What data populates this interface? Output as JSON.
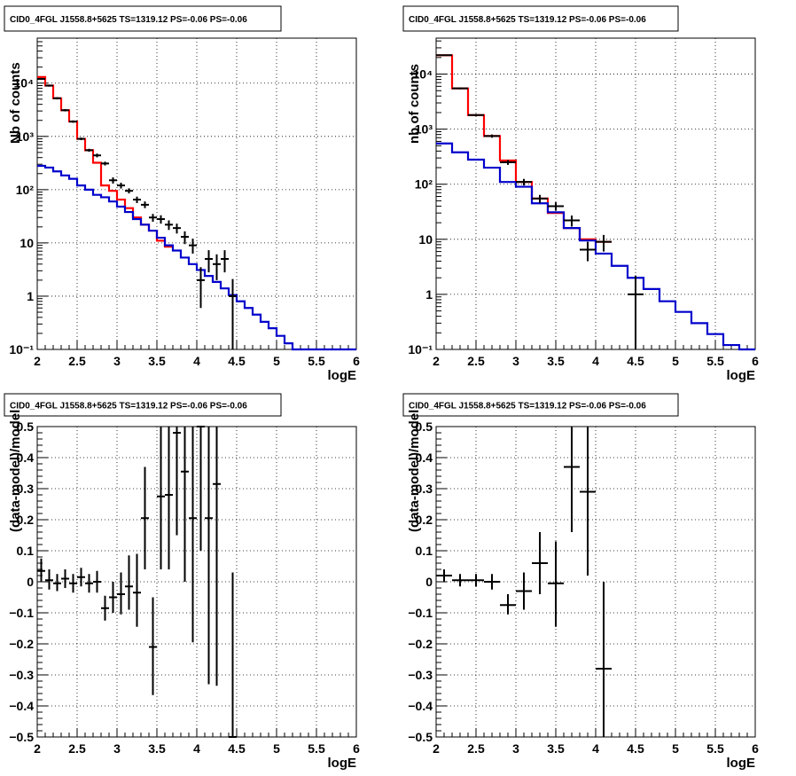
{
  "chart_data": [
    {
      "id": "tl",
      "type": "histogram-log",
      "title": "CID0_4FGL J1558.8+5625 TS=1319.12 PS=-0.06 PS=-0.06",
      "xlabel": "logE",
      "ylabel": "Nb of counts",
      "xlim": [
        2,
        6
      ],
      "ylim": [
        0.1,
        70000
      ],
      "log_y": true,
      "grid": true,
      "xticks": [
        {
          "v": 2,
          "t": "2"
        },
        {
          "v": 2.5,
          "t": "2.5"
        },
        {
          "v": 3,
          "t": "3"
        },
        {
          "v": 3.5,
          "t": "3.5"
        },
        {
          "v": 4,
          "t": "4"
        },
        {
          "v": 4.5,
          "t": "4.5"
        },
        {
          "v": 5,
          "t": "5"
        },
        {
          "v": 5.5,
          "t": "5.5"
        },
        {
          "v": 6,
          "t": "6"
        }
      ],
      "yticks": [
        {
          "v": 0.1,
          "t": "10⁻¹"
        },
        {
          "v": 1,
          "t": "1"
        },
        {
          "v": 10,
          "t": "10"
        },
        {
          "v": 100,
          "t": "10²"
        },
        {
          "v": 1000,
          "t": "10³"
        },
        {
          "v": 10000,
          "t": "10⁴"
        }
      ],
      "bin_width": 0.1,
      "series": [
        {
          "color": "#ff0000",
          "edges_start": 2.0,
          "values": [
            13000,
            9000,
            5200,
            3100,
            1900,
            900,
            550,
            320,
            120,
            95,
            65,
            45,
            30,
            22,
            17,
            11,
            8.5
          ]
        },
        {
          "color": "#0000cc",
          "edges_start": 2.0,
          "values": [
            280,
            260,
            220,
            185,
            160,
            120,
            100,
            80,
            72,
            60,
            48,
            38,
            28,
            22,
            17,
            12.5,
            9,
            7.2,
            5.3,
            4.0,
            3.1,
            2.4,
            1.85,
            1.4,
            1.05,
            0.8,
            0.6,
            0.45,
            0.33,
            0.25,
            0.18,
            0.13,
            0.1,
            0.1,
            0.1,
            0.1,
            0.1,
            0.1,
            0.1,
            0.1
          ]
        }
      ],
      "points": [
        {
          "x": 2.05,
          "y": 12000,
          "lo": 11500,
          "hi": 12500
        },
        {
          "x": 2.15,
          "y": 9000,
          "lo": 8600,
          "hi": 9400
        },
        {
          "x": 2.25,
          "y": 5200,
          "lo": 4950,
          "hi": 5450
        },
        {
          "x": 2.35,
          "y": 3100,
          "lo": 2950,
          "hi": 3250
        },
        {
          "x": 2.45,
          "y": 1900,
          "lo": 1800,
          "hi": 2000
        },
        {
          "x": 2.55,
          "y": 900,
          "lo": 850,
          "hi": 950
        },
        {
          "x": 2.65,
          "y": 550,
          "lo": 515,
          "hi": 585
        },
        {
          "x": 2.75,
          "y": 440,
          "lo": 405,
          "hi": 475
        },
        {
          "x": 2.85,
          "y": 310,
          "lo": 285,
          "hi": 335
        },
        {
          "x": 2.95,
          "y": 150,
          "lo": 130,
          "hi": 170
        },
        {
          "x": 3.05,
          "y": 120,
          "lo": 105,
          "hi": 135
        },
        {
          "x": 3.15,
          "y": 95,
          "lo": 85,
          "hi": 106
        },
        {
          "x": 3.25,
          "y": 65,
          "lo": 56,
          "hi": 74
        },
        {
          "x": 3.35,
          "y": 52,
          "lo": 45,
          "hi": 60
        },
        {
          "x": 3.45,
          "y": 30,
          "lo": 25,
          "hi": 35
        },
        {
          "x": 3.55,
          "y": 28,
          "lo": 23,
          "hi": 33
        },
        {
          "x": 3.65,
          "y": 22,
          "lo": 17.5,
          "hi": 26.5
        },
        {
          "x": 3.75,
          "y": 19,
          "lo": 15,
          "hi": 23
        },
        {
          "x": 3.85,
          "y": 13,
          "lo": 9.5,
          "hi": 16.5
        },
        {
          "x": 3.95,
          "y": 9,
          "lo": 6.3,
          "hi": 12
        },
        {
          "x": 4.05,
          "y": 2,
          "lo": 0.6,
          "hi": 3.5
        },
        {
          "x": 4.15,
          "y": 5,
          "lo": 2.8,
          "hi": 7.3
        },
        {
          "x": 4.25,
          "y": 4,
          "lo": 2.0,
          "hi": 6.1
        },
        {
          "x": 4.35,
          "y": 5,
          "lo": 2.8,
          "hi": 7.3
        },
        {
          "x": 4.45,
          "y": 1,
          "lo": 0.1,
          "hi": 2.1
        }
      ]
    },
    {
      "id": "tr",
      "type": "histogram-log",
      "title": "CID0_4FGL J1558.8+5625 TS=1319.12 PS=-0.06 PS=-0.06",
      "xlabel": "logE",
      "ylabel": "nb of counts",
      "xlim": [
        2,
        6
      ],
      "ylim": [
        0.1,
        45000
      ],
      "log_y": true,
      "grid": true,
      "xticks": [
        {
          "v": 2,
          "t": "2"
        },
        {
          "v": 2.5,
          "t": "2.5"
        },
        {
          "v": 3,
          "t": "3"
        },
        {
          "v": 3.5,
          "t": "3.5"
        },
        {
          "v": 4,
          "t": "4"
        },
        {
          "v": 4.5,
          "t": "4.5"
        },
        {
          "v": 5,
          "t": "5"
        },
        {
          "v": 5.5,
          "t": "5.5"
        },
        {
          "v": 6,
          "t": "6"
        }
      ],
      "yticks": [
        {
          "v": 0.1,
          "t": "10⁻¹"
        },
        {
          "v": 1,
          "t": "1"
        },
        {
          "v": 10,
          "t": "10"
        },
        {
          "v": 100,
          "t": "10²"
        },
        {
          "v": 1000,
          "t": "10³"
        },
        {
          "v": 10000,
          "t": "10⁴"
        }
      ],
      "bin_width": 0.2,
      "series": [
        {
          "color": "#ff0000",
          "edges_start": 2.0,
          "values": [
            22000,
            5500,
            1800,
            750,
            270,
            110,
            55,
            30,
            16,
            10,
            9
          ]
        },
        {
          "color": "#0000cc",
          "edges_start": 2.0,
          "values": [
            550,
            380,
            280,
            200,
            110,
            90,
            45,
            31,
            16,
            9.5,
            5.5,
            3.3,
            2.0,
            1.25,
            0.75,
            0.48,
            0.3,
            0.19,
            0.12,
            0.1
          ]
        }
      ],
      "points": [
        {
          "x": 2.1,
          "y": 22000,
          "lo": 21400,
          "hi": 22600
        },
        {
          "x": 2.3,
          "y": 5500,
          "lo": 5300,
          "hi": 5700
        },
        {
          "x": 2.5,
          "y": 1800,
          "lo": 1720,
          "hi": 1880
        },
        {
          "x": 2.7,
          "y": 750,
          "lo": 700,
          "hi": 800
        },
        {
          "x": 2.9,
          "y": 250,
          "lo": 225,
          "hi": 275
        },
        {
          "x": 3.1,
          "y": 110,
          "lo": 95,
          "hi": 125
        },
        {
          "x": 3.3,
          "y": 55,
          "lo": 46,
          "hi": 64
        },
        {
          "x": 3.5,
          "y": 40,
          "lo": 33,
          "hi": 47
        },
        {
          "x": 3.7,
          "y": 22,
          "lo": 17,
          "hi": 27
        },
        {
          "x": 3.9,
          "y": 6.5,
          "lo": 4.0,
          "hi": 9.0
        },
        {
          "x": 4.1,
          "y": 9,
          "lo": 6,
          "hi": 12
        },
        {
          "x": 4.5,
          "y": 1,
          "lo": 0.1,
          "hi": 2.2
        }
      ]
    },
    {
      "id": "bl",
      "type": "scatter-errorbars",
      "title": "CID0_4FGL J1558.8+5625 TS=1319.12 PS=-0.06 PS=-0.06",
      "xlabel": "logE",
      "ylabel": "(data-model)/model",
      "xlim": [
        2,
        6
      ],
      "ylim": [
        -0.5,
        0.5
      ],
      "log_y": false,
      "grid": true,
      "xticks": [
        {
          "v": 2,
          "t": "2"
        },
        {
          "v": 2.5,
          "t": "2.5"
        },
        {
          "v": 3,
          "t": "3"
        },
        {
          "v": 3.5,
          "t": "3.5"
        },
        {
          "v": 4,
          "t": "4"
        },
        {
          "v": 4.5,
          "t": "4.5"
        },
        {
          "v": 5,
          "t": "5"
        },
        {
          "v": 5.5,
          "t": "5.5"
        },
        {
          "v": 6,
          "t": "6"
        }
      ],
      "yticks": [
        {
          "v": -0.5,
          "t": "−0.5"
        },
        {
          "v": -0.4,
          "t": "−0.4"
        },
        {
          "v": -0.3,
          "t": "−0.3"
        },
        {
          "v": -0.2,
          "t": "−0.2"
        },
        {
          "v": -0.1,
          "t": "−0.1"
        },
        {
          "v": 0,
          "t": "0"
        },
        {
          "v": 0.1,
          "t": "0.1"
        },
        {
          "v": 0.2,
          "t": "0.2"
        },
        {
          "v": 0.3,
          "t": "0.3"
        },
        {
          "v": 0.4,
          "t": "0.4"
        },
        {
          "v": 0.5,
          "t": "0.5"
        }
      ],
      "bin_width": 0.1,
      "points": [
        {
          "x": 2.05,
          "y": 0.035,
          "lo": 0.0,
          "hi": 0.075
        },
        {
          "x": 2.15,
          "y": 0.005,
          "lo": -0.025,
          "hi": 0.04
        },
        {
          "x": 2.25,
          "y": -0.005,
          "lo": -0.03,
          "hi": 0.025
        },
        {
          "x": 2.35,
          "y": 0.01,
          "lo": -0.02,
          "hi": 0.04
        },
        {
          "x": 2.45,
          "y": -0.005,
          "lo": -0.035,
          "hi": 0.025
        },
        {
          "x": 2.55,
          "y": 0.015,
          "lo": -0.015,
          "hi": 0.045
        },
        {
          "x": 2.65,
          "y": -0.005,
          "lo": -0.035,
          "hi": 0.025
        },
        {
          "x": 2.75,
          "y": 0.0,
          "lo": -0.035,
          "hi": 0.035
        },
        {
          "x": 2.85,
          "y": -0.085,
          "lo": -0.125,
          "hi": -0.045
        },
        {
          "x": 2.95,
          "y": -0.05,
          "lo": -0.1,
          "hi": 0.0
        },
        {
          "x": 3.05,
          "y": -0.04,
          "lo": -0.105,
          "hi": 0.03
        },
        {
          "x": 3.15,
          "y": -0.015,
          "lo": -0.09,
          "hi": 0.085
        },
        {
          "x": 3.25,
          "y": -0.035,
          "lo": -0.145,
          "hi": 0.09
        },
        {
          "x": 3.35,
          "y": 0.205,
          "lo": 0.04,
          "hi": 0.37
        },
        {
          "x": 3.45,
          "y": -0.21,
          "lo": -0.365,
          "hi": -0.05
        },
        {
          "x": 3.55,
          "y": 0.275,
          "lo": 0.04,
          "hi": 0.5
        },
        {
          "x": 3.65,
          "y": 0.28,
          "lo": 0.04,
          "hi": 0.5
        },
        {
          "x": 3.75,
          "y": 0.48,
          "lo": 0.15,
          "hi": 0.5
        },
        {
          "x": 3.85,
          "y": 0.355,
          "lo": 0.0,
          "hi": 0.5
        },
        {
          "x": 3.95,
          "y": 0.205,
          "lo": -0.195,
          "hi": 0.5
        },
        {
          "x": 4.05,
          "y": 0.5,
          "lo": 0.1,
          "hi": 0.5
        },
        {
          "x": 4.15,
          "y": 0.205,
          "lo": -0.33,
          "hi": 0.5
        },
        {
          "x": 4.25,
          "y": 0.315,
          "lo": -0.335,
          "hi": 0.5
        },
        {
          "x": 4.45,
          "y": -0.5,
          "lo": -0.5,
          "hi": 0.03
        }
      ]
    },
    {
      "id": "br",
      "type": "scatter-errorbars",
      "title": "CID0_4FGL J1558.8+5625 TS=1319.12 PS=-0.06 PS=-0.06",
      "xlabel": "logE",
      "ylabel": "(data-model)/model",
      "xlim": [
        2,
        6
      ],
      "ylim": [
        -0.5,
        0.5
      ],
      "log_y": false,
      "grid": true,
      "xticks": [
        {
          "v": 2,
          "t": "2"
        },
        {
          "v": 2.5,
          "t": "2.5"
        },
        {
          "v": 3,
          "t": "3"
        },
        {
          "v": 3.5,
          "t": "3.5"
        },
        {
          "v": 4,
          "t": "4"
        },
        {
          "v": 4.5,
          "t": "4.5"
        },
        {
          "v": 5,
          "t": "5"
        },
        {
          "v": 5.5,
          "t": "5.5"
        },
        {
          "v": 6,
          "t": "6"
        }
      ],
      "yticks": [
        {
          "v": -0.5,
          "t": "−0.5"
        },
        {
          "v": -0.4,
          "t": "−0.4"
        },
        {
          "v": -0.3,
          "t": "−0.3"
        },
        {
          "v": -0.2,
          "t": "−0.2"
        },
        {
          "v": -0.1,
          "t": "−0.1"
        },
        {
          "v": 0,
          "t": "0"
        },
        {
          "v": 0.1,
          "t": "0.1"
        },
        {
          "v": 0.2,
          "t": "0.2"
        },
        {
          "v": 0.3,
          "t": "0.3"
        },
        {
          "v": 0.4,
          "t": "0.4"
        },
        {
          "v": 0.5,
          "t": "0.5"
        }
      ],
      "bin_width": 0.2,
      "points": [
        {
          "x": 2.1,
          "y": 0.02,
          "lo": 0.0,
          "hi": 0.04
        },
        {
          "x": 2.3,
          "y": 0.005,
          "lo": -0.015,
          "hi": 0.025
        },
        {
          "x": 2.5,
          "y": 0.005,
          "lo": -0.015,
          "hi": 0.025
        },
        {
          "x": 2.7,
          "y": 0.0,
          "lo": -0.025,
          "hi": 0.025
        },
        {
          "x": 2.9,
          "y": -0.075,
          "lo": -0.105,
          "hi": -0.04
        },
        {
          "x": 3.1,
          "y": -0.03,
          "lo": -0.09,
          "hi": 0.03
        },
        {
          "x": 3.3,
          "y": 0.06,
          "lo": -0.04,
          "hi": 0.16
        },
        {
          "x": 3.5,
          "y": -0.005,
          "lo": -0.145,
          "hi": 0.13
        },
        {
          "x": 3.7,
          "y": 0.37,
          "lo": 0.16,
          "hi": 0.5
        },
        {
          "x": 3.9,
          "y": 0.29,
          "lo": 0.02,
          "hi": 0.5
        },
        {
          "x": 4.1,
          "y": -0.28,
          "lo": -0.5,
          "hi": 0.0
        }
      ]
    }
  ]
}
